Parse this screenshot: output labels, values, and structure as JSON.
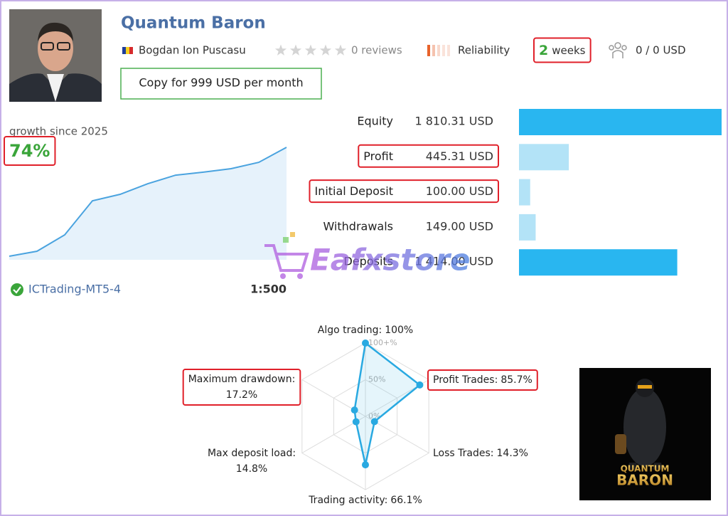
{
  "header": {
    "title": "Quantum Baron",
    "author": "Bogdan Ion Puscasu",
    "reviews": "0 reviews",
    "reliability": "Reliability",
    "duration": {
      "number": "2",
      "unit": "weeks",
      "highlight": true
    },
    "subscribers": "0 / 0 USD",
    "copy_button": "Copy for 999 USD per month"
  },
  "growth": {
    "label": "growth since 2025",
    "value": 74,
    "value_label": "74%",
    "highlight": true,
    "color": "#4aa3df",
    "curve": [
      0,
      3.4,
      14.5,
      37.7,
      42.1,
      49.3,
      55.1,
      57.1,
      59.5,
      63.8,
      74
    ]
  },
  "account": {
    "broker": "ICTrading-MT5-4",
    "leverage": "1:500"
  },
  "amounts": [
    {
      "label": "Equity",
      "value": 1810.31,
      "value_label": "1 810.31 USD",
      "color": "#29b6f0",
      "highlight": false
    },
    {
      "label": "Profit",
      "value": 445.31,
      "value_label": "445.31 USD",
      "color": "#b3e3f7",
      "highlight": true
    },
    {
      "label": "Initial Deposit",
      "value": 100.0,
      "value_label": "100.00 USD",
      "color": "#b3e3f7",
      "highlight": true
    },
    {
      "label": "Withdrawals",
      "value": 149.0,
      "value_label": "149.00 USD",
      "color": "#b3e3f7",
      "highlight": false
    },
    {
      "label": "Deposits",
      "value": 1414.0,
      "value_label": "1 414.00 USD",
      "color": "#29b6f0",
      "highlight": false
    }
  ],
  "radar": {
    "rlim": [
      0,
      100
    ],
    "color": "#29a9e1",
    "ticks": [
      {
        "value": 0,
        "label": "0%"
      },
      {
        "value": 50,
        "label": "50%"
      },
      {
        "value": 100,
        "label": "100+%"
      }
    ],
    "axes": [
      {
        "label": "Algo trading:",
        "value": 100,
        "value_label": "100%",
        "highlight": false
      },
      {
        "label": "Profit Trades:",
        "value": 85.7,
        "value_label": "85.7%",
        "highlight": true
      },
      {
        "label": "Loss Trades:",
        "value": 14.3,
        "value_label": "14.3%",
        "highlight": false
      },
      {
        "label": "Trading activity:",
        "value": 66.1,
        "value_label": "66.1%",
        "highlight": false
      },
      {
        "label": "Max deposit load:",
        "value": 14.8,
        "value_label": "14.8%",
        "highlight": false
      },
      {
        "label": "Maximum drawdown:",
        "value": 17.2,
        "value_label": "17.2%",
        "highlight": true
      }
    ]
  },
  "promo": {
    "line1": "QUANTUM",
    "line2": "BARON"
  },
  "watermark": "Eafxstore"
}
